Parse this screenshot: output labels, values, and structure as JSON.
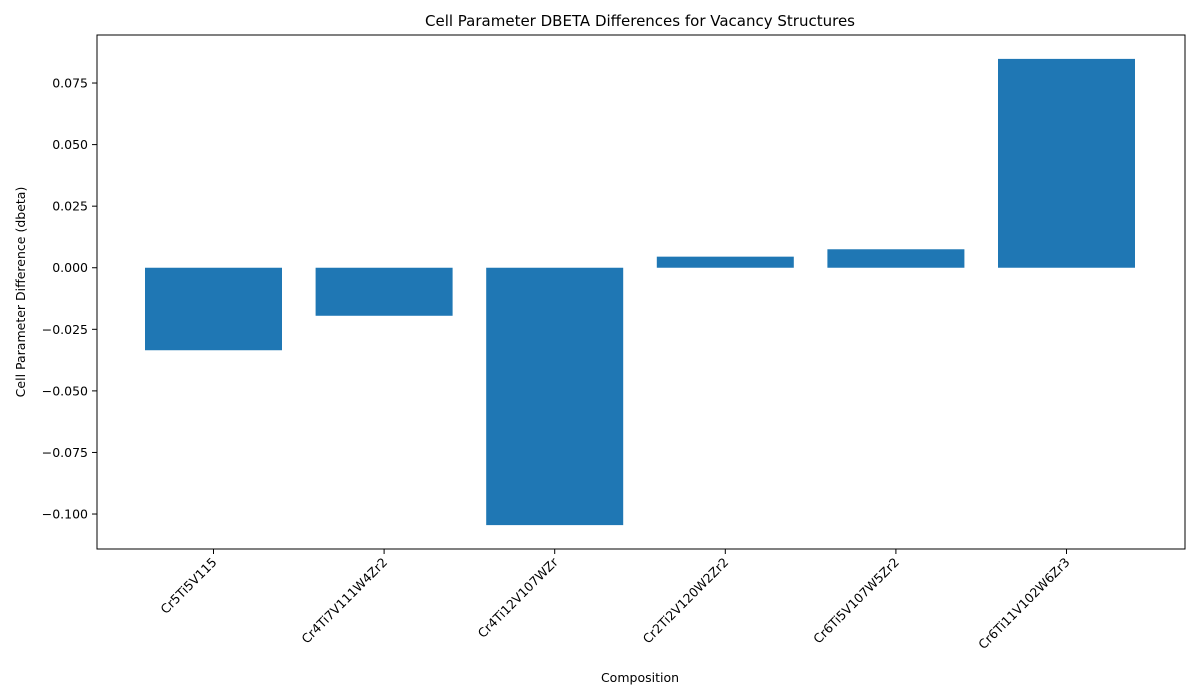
{
  "chart_data": {
    "type": "bar",
    "title": "Cell Parameter DBETA Differences for Vacancy Structures",
    "xlabel": "Composition",
    "ylabel": "Cell Parameter Difference (dbeta)",
    "categories": [
      "Cr5Ti5V115",
      "Cr4Ti7V111W4Zr2",
      "Cr4Ti12V107WZr",
      "Cr2Ti2V120W2Zr2",
      "Cr6Ti5V107W5Zr2",
      "Cr6Ti11V102W6Zr3"
    ],
    "values": [
      -0.0335,
      -0.0195,
      -0.1045,
      0.0045,
      0.0075,
      0.0848
    ],
    "ylim": [
      -0.1142,
      0.0945
    ],
    "yticks": [
      -0.1,
      -0.075,
      -0.05,
      -0.025,
      0.0,
      0.025,
      0.05,
      0.075
    ],
    "ytick_labels": [
      "−0.100",
      "−0.075",
      "−0.050",
      "−0.025",
      "0.000",
      "0.025",
      "0.050",
      "0.075"
    ],
    "bar_color": "#1f77b4",
    "grid": false,
    "legend": "none"
  }
}
